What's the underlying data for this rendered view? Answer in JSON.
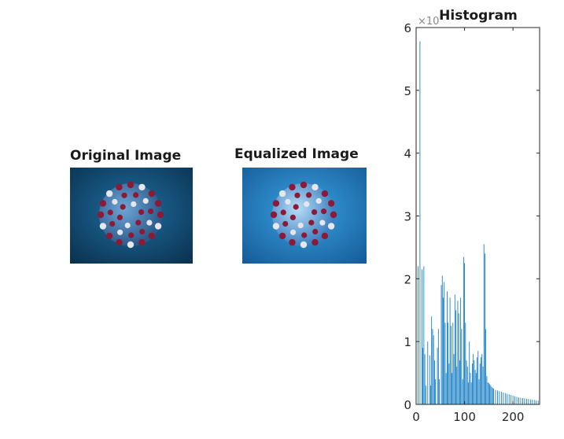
{
  "figure": {
    "panels": [
      {
        "title": "Original Image",
        "image": "virus-image",
        "tone": "darker"
      },
      {
        "title": "Equalized Image",
        "image": "virus-image",
        "tone": "brighter"
      }
    ]
  },
  "colors": {
    "bar": "#0072BD",
    "axis": "#262626",
    "orig_bg_center": "#1f6ea0",
    "orig_bg_edge": "#0a2f4d",
    "eq_bg_center": "#3aa0e0",
    "eq_bg_edge": "#145a96",
    "spike_red": "#8b1a36",
    "spike_white": "#e6e6ee"
  },
  "chart_data": {
    "type": "bar",
    "title": "Histogram",
    "xlabel": "",
    "ylabel": "",
    "xlim": [
      0,
      255
    ],
    "ylim": [
      0,
      60000
    ],
    "y_exponent_label": "×10",
    "x_ticks": [
      0,
      100,
      200
    ],
    "y_ticks": [
      0,
      1,
      2,
      3,
      4,
      5,
      6
    ],
    "grid": false,
    "bins": [
      0,
      4,
      8,
      12,
      14,
      16,
      18,
      20,
      24,
      28,
      30,
      32,
      34,
      36,
      38,
      40,
      44,
      46,
      48,
      52,
      54,
      56,
      58,
      60,
      62,
      64,
      66,
      68,
      70,
      72,
      74,
      76,
      78,
      80,
      82,
      84,
      86,
      88,
      90,
      92,
      94,
      96,
      98,
      100,
      102,
      104,
      106,
      108,
      110,
      112,
      114,
      116,
      118,
      120,
      122,
      124,
      126,
      128,
      130,
      132,
      134,
      136,
      138,
      140,
      142,
      144,
      146,
      148,
      150,
      152,
      154,
      156,
      158,
      160,
      164,
      168,
      172,
      176,
      180,
      184,
      188,
      192,
      196,
      200,
      204,
      208,
      212,
      216,
      220,
      224,
      228,
      232,
      236,
      240,
      244,
      248,
      252,
      255
    ],
    "counts": [
      7000,
      22000,
      57800,
      21500,
      9000,
      22000,
      8000,
      3000,
      10000,
      7800,
      3000,
      14000,
      12000,
      11000,
      7000,
      4000,
      9000,
      12000,
      4000,
      19000,
      20500,
      17000,
      19500,
      13000,
      5000,
      18000,
      13000,
      6500,
      17000,
      12500,
      5000,
      13000,
      8000,
      17500,
      15000,
      6000,
      16500,
      14500,
      7000,
      17000,
      12000,
      4000,
      23500,
      22500,
      13000,
      7000,
      6000,
      3500,
      10000,
      5000,
      3500,
      6500,
      8000,
      7000,
      5500,
      5000,
      7500,
      8500,
      4000,
      6500,
      7500,
      8000,
      6000,
      25500,
      24000,
      12000,
      4500,
      3500,
      3400,
      3200,
      3000,
      2800,
      2600,
      2500,
      2300,
      2200,
      2100,
      2000,
      1900,
      1800,
      1700,
      1600,
      1500,
      1400,
      1300,
      1200,
      1100,
      1050,
      1000,
      950,
      900,
      850,
      800,
      750,
      700,
      650,
      600,
      3000
    ]
  }
}
